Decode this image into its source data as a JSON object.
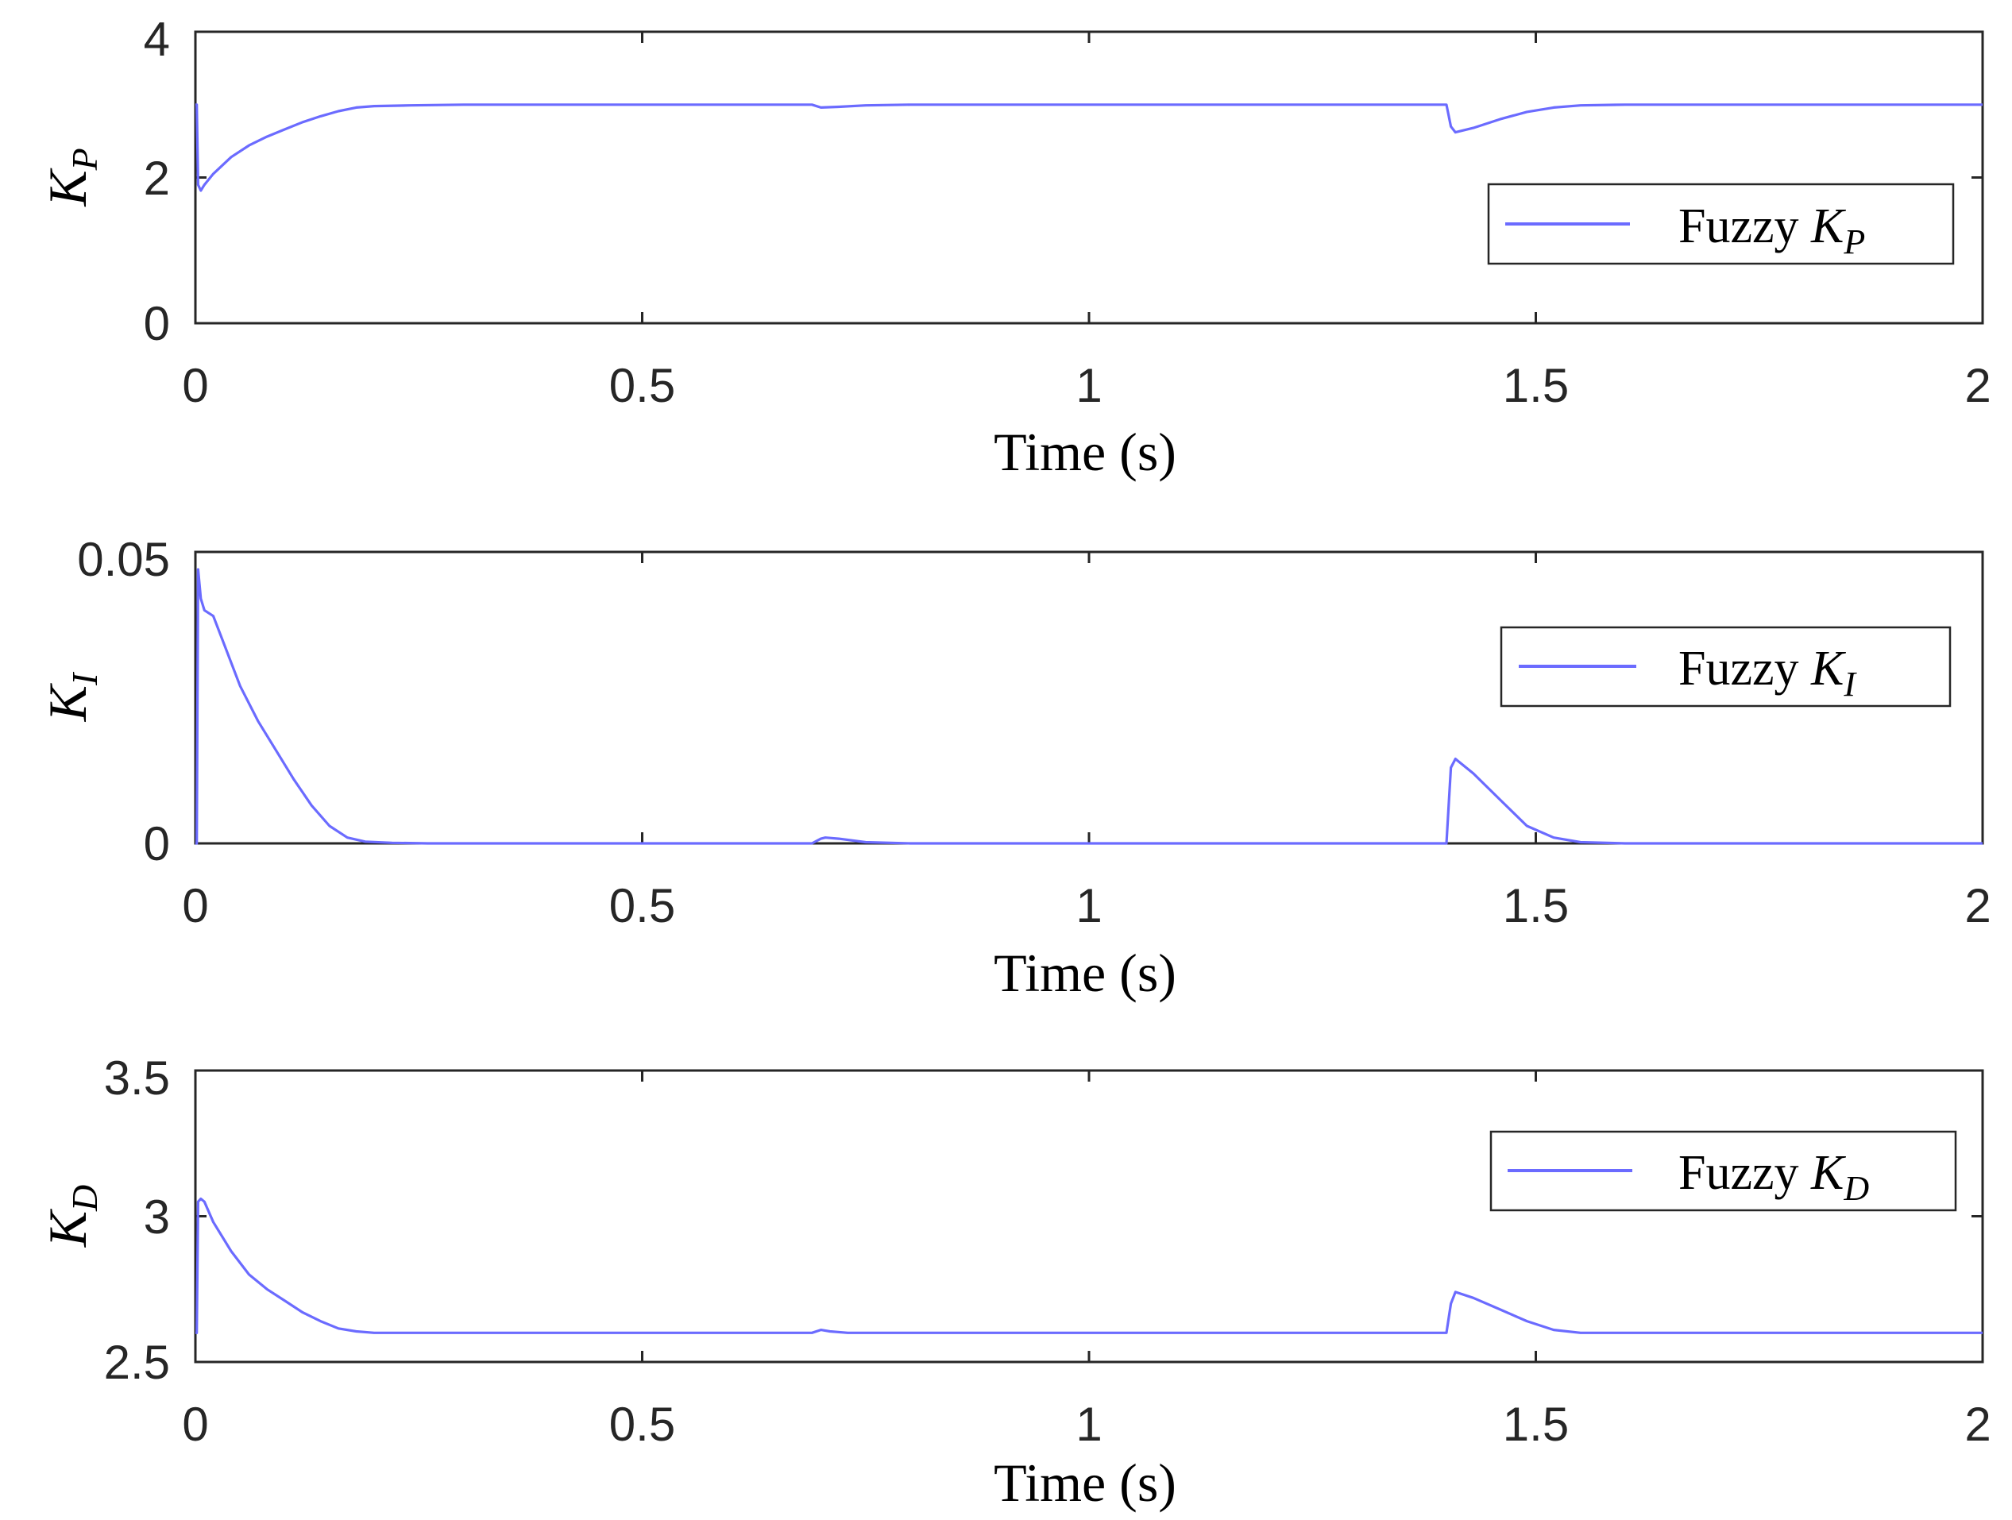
{
  "chart_data": [
    {
      "type": "line",
      "panel": "kp",
      "xlabel": "Time (s)",
      "ylabel_main": "K",
      "ylabel_sub": "P",
      "xlim": [
        0,
        2
      ],
      "ylim": [
        0,
        4
      ],
      "xticks": [
        0,
        0.5,
        1,
        1.5,
        2
      ],
      "yticks": [
        0,
        2,
        4
      ],
      "xtick_labels": [
        "0",
        "0.5",
        "1",
        "1.5",
        "2"
      ],
      "ytick_labels": [
        "0",
        "2",
        "4"
      ],
      "legend": {
        "position": "right",
        "text": "Fuzzy",
        "var": "K",
        "sub": "P"
      },
      "color": "#6b6bff",
      "series": [
        {
          "name": "Fuzzy KP",
          "x": [
            0,
            0.0015,
            0.003,
            0.006,
            0.01,
            0.02,
            0.04,
            0.06,
            0.08,
            0.1,
            0.12,
            0.14,
            0.16,
            0.18,
            0.2,
            0.24,
            0.3,
            0.5,
            0.69,
            0.7,
            0.72,
            0.75,
            0.8,
            1.0,
            1.2,
            1.39,
            1.4,
            1.405,
            1.41,
            1.43,
            1.46,
            1.49,
            1.52,
            1.55,
            1.6,
            1.8,
            2.0
          ],
          "y": [
            3.0,
            3.0,
            1.9,
            1.82,
            1.9,
            2.05,
            2.28,
            2.44,
            2.56,
            2.66,
            2.76,
            2.84,
            2.91,
            2.96,
            2.98,
            2.99,
            3.0,
            3.0,
            3.0,
            2.96,
            2.97,
            2.99,
            3.0,
            3.0,
            3.0,
            3.0,
            3.0,
            2.7,
            2.62,
            2.68,
            2.8,
            2.9,
            2.96,
            2.99,
            3.0,
            3.0,
            3.0
          ]
        }
      ]
    },
    {
      "type": "line",
      "panel": "ki",
      "xlabel": "Time (s)",
      "ylabel_main": "K",
      "ylabel_sub": "I",
      "xlim": [
        0,
        2
      ],
      "ylim": [
        0,
        0.05
      ],
      "xticks": [
        0,
        0.5,
        1,
        1.5,
        2
      ],
      "yticks": [
        0,
        0.05
      ],
      "xtick_labels": [
        "0",
        "0.5",
        "1",
        "1.5",
        "2"
      ],
      "ytick_labels": [
        "0",
        "0.05"
      ],
      "legend": {
        "position": "right",
        "text": "Fuzzy",
        "var": "K",
        "sub": "I"
      },
      "color": "#6b6bff",
      "series": [
        {
          "name": "Fuzzy KI",
          "x": [
            0,
            0.0015,
            0.003,
            0.006,
            0.01,
            0.015,
            0.02,
            0.03,
            0.05,
            0.07,
            0.09,
            0.11,
            0.13,
            0.15,
            0.17,
            0.19,
            0.22,
            0.26,
            0.3,
            0.69,
            0.7,
            0.705,
            0.72,
            0.75,
            0.8,
            1.0,
            1.2,
            1.399,
            1.4,
            1.405,
            1.41,
            1.43,
            1.46,
            1.49,
            1.52,
            1.55,
            1.6,
            1.8,
            2.0
          ],
          "y": [
            0,
            0.0,
            0.047,
            0.042,
            0.04,
            0.0395,
            0.039,
            0.035,
            0.027,
            0.021,
            0.016,
            0.011,
            0.0065,
            0.003,
            0.001,
            0.0003,
            0.0001,
            0.0,
            0.0,
            0.0,
            0.0008,
            0.001,
            0.0008,
            0.0002,
            0.0,
            0.0,
            0.0,
            0.0,
            0.0,
            0.013,
            0.0145,
            0.012,
            0.0075,
            0.003,
            0.001,
            0.0002,
            0.0,
            0.0,
            0.0
          ]
        }
      ]
    },
    {
      "type": "line",
      "panel": "kd",
      "xlabel": "Time (s)",
      "ylabel_main": "K",
      "ylabel_sub": "D",
      "xlim": [
        0,
        2
      ],
      "ylim": [
        2.5,
        3.5
      ],
      "xticks": [
        0,
        0.5,
        1,
        1.5,
        2
      ],
      "yticks": [
        2.5,
        3,
        3.5
      ],
      "xtick_labels": [
        "0",
        "0.5",
        "1",
        "1.5",
        "2"
      ],
      "ytick_labels": [
        "2.5",
        "3",
        "3.5"
      ],
      "legend": {
        "position": "right",
        "text": "Fuzzy",
        "var": "K",
        "sub": "D"
      },
      "color": "#6b6bff",
      "series": [
        {
          "name": "Fuzzy KD",
          "x": [
            0,
            0.0015,
            0.003,
            0.006,
            0.01,
            0.02,
            0.04,
            0.06,
            0.08,
            0.1,
            0.12,
            0.14,
            0.16,
            0.18,
            0.2,
            0.24,
            0.3,
            0.5,
            0.69,
            0.7,
            0.71,
            0.73,
            0.75,
            0.8,
            1.0,
            1.2,
            1.399,
            1.4,
            1.405,
            1.41,
            1.43,
            1.46,
            1.49,
            1.52,
            1.55,
            1.6,
            1.8,
            2.0
          ],
          "y": [
            2.6,
            2.6,
            3.05,
            3.06,
            3.05,
            2.98,
            2.88,
            2.8,
            2.75,
            2.71,
            2.67,
            2.64,
            2.615,
            2.605,
            2.6,
            2.6,
            2.6,
            2.6,
            2.6,
            2.61,
            2.605,
            2.6,
            2.6,
            2.6,
            2.6,
            2.6,
            2.6,
            2.6,
            2.7,
            2.74,
            2.72,
            2.68,
            2.64,
            2.61,
            2.6,
            2.6,
            2.6,
            2.6
          ]
        }
      ]
    }
  ]
}
